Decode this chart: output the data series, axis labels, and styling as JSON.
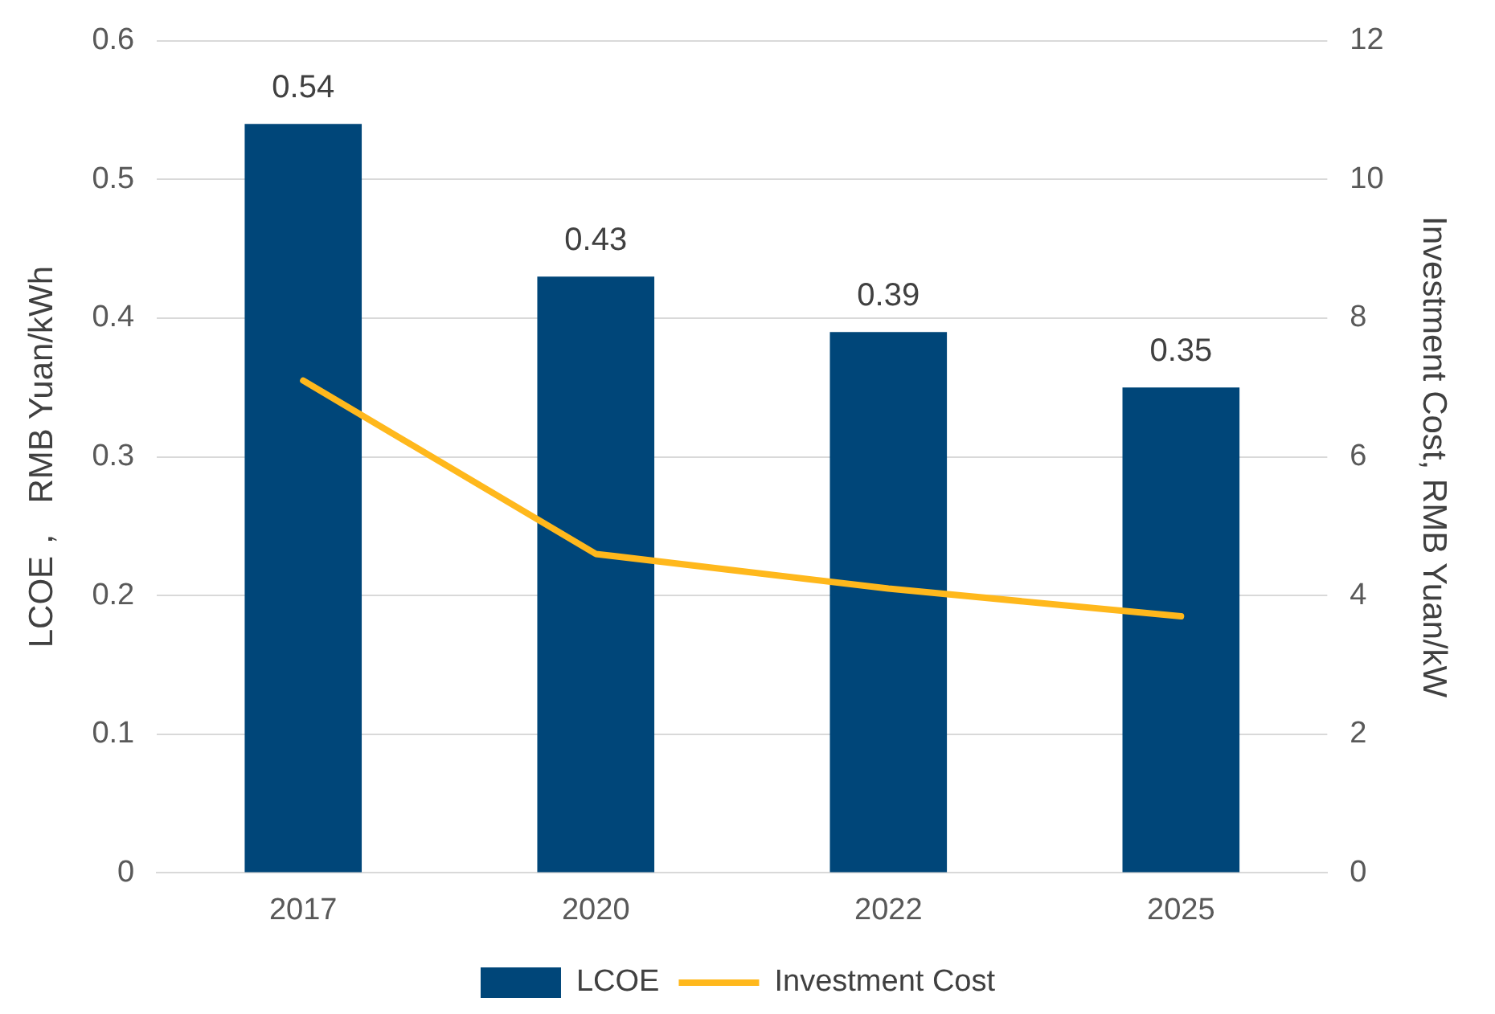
{
  "chart_data": {
    "type": "bar",
    "categories": [
      "2017",
      "2020",
      "2022",
      "2025"
    ],
    "series": [
      {
        "name": "LCOE",
        "color": "#004679",
        "values": [
          0.54,
          0.43,
          0.39,
          0.35
        ],
        "data_labels": true
      },
      {
        "name": "Investment Cost",
        "type": "line",
        "color": "#ffb81c",
        "axis": "y2",
        "values": [
          7.1,
          4.6,
          4.1,
          3.7
        ]
      }
    ],
    "ylabel": "LCOE，  RMB Yuan/kWh",
    "y2label": "Investment Cost, RMB Yuan/kW",
    "ylim": [
      0,
      0.6
    ],
    "yticks": [
      0,
      0.1,
      0.2,
      0.3,
      0.4,
      0.5,
      0.6
    ],
    "y2lim": [
      0,
      12
    ],
    "y2ticks": [
      0,
      2,
      4,
      6,
      8,
      10,
      12
    ],
    "grid": "y",
    "legend": "bottom",
    "marker": "none"
  }
}
